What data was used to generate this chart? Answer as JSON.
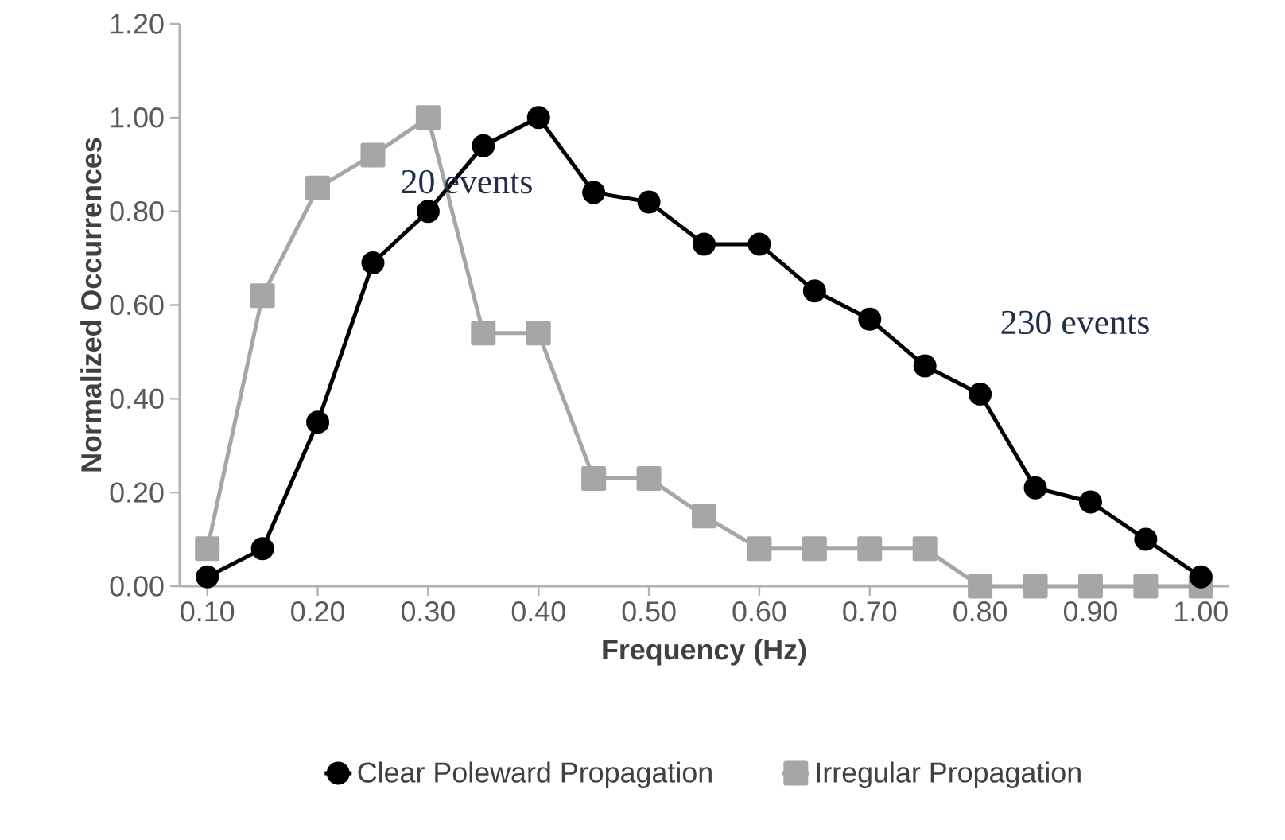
{
  "chart_data": {
    "type": "line",
    "xlabel": "Frequency (Hz)",
    "ylabel": "Normalized Occurrences",
    "x": [
      0.1,
      0.15,
      0.2,
      0.25,
      0.3,
      0.35,
      0.4,
      0.45,
      0.5,
      0.55,
      0.6,
      0.65,
      0.7,
      0.75,
      0.8,
      0.85,
      0.9,
      0.95,
      1.0
    ],
    "series": [
      {
        "name": "Clear Poleward Propagation",
        "color": "#000000",
        "marker": "circle",
        "values": [
          0.02,
          0.08,
          0.35,
          0.69,
          0.8,
          0.94,
          1.0,
          0.84,
          0.82,
          0.73,
          0.73,
          0.63,
          0.57,
          0.47,
          0.41,
          0.21,
          0.18,
          0.1,
          0.02
        ]
      },
      {
        "name": "Irregular Propagation",
        "color": "#a6a6a6",
        "marker": "square",
        "values": [
          0.08,
          0.62,
          0.85,
          0.92,
          1.0,
          0.54,
          0.54,
          0.23,
          0.23,
          0.15,
          0.08,
          0.08,
          0.08,
          0.08,
          0.0,
          0.0,
          0.0,
          0.0,
          0.0
        ]
      }
    ],
    "xlim": [
      0.075,
      1.025
    ],
    "xticks": [
      {
        "value": 0.1,
        "label": "0.10"
      },
      {
        "value": 0.2,
        "label": "0.20"
      },
      {
        "value": 0.3,
        "label": "0.30"
      },
      {
        "value": 0.4,
        "label": "0.40"
      },
      {
        "value": 0.5,
        "label": "0.50"
      },
      {
        "value": 0.6,
        "label": "0.60"
      },
      {
        "value": 0.7,
        "label": "0.70"
      },
      {
        "value": 0.8,
        "label": "0.80"
      },
      {
        "value": 0.9,
        "label": "0.90"
      },
      {
        "value": 1.0,
        "label": "1.00"
      }
    ],
    "ylim": [
      0,
      1.2
    ],
    "yticks": [
      {
        "value": 0,
        "label": "0.00"
      },
      {
        "value": 0.2,
        "label": "0.20"
      },
      {
        "value": 0.4,
        "label": "0.40"
      },
      {
        "value": 0.6,
        "label": "0.60"
      },
      {
        "value": 0.8,
        "label": "0.80"
      },
      {
        "value": 1.0,
        "label": "1.00"
      },
      {
        "value": 1.2,
        "label": "1.20"
      }
    ],
    "annotations": [
      "20 events",
      "230 events"
    ],
    "legend": "bottom",
    "grid": false,
    "line_style": "solid"
  }
}
